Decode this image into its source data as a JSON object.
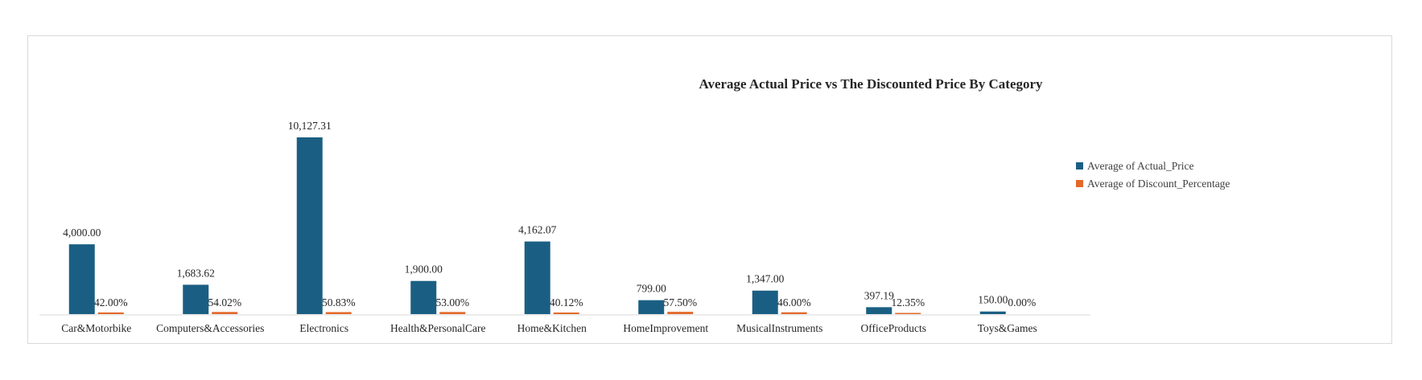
{
  "chart_data": {
    "type": "bar",
    "title": "Average Actual Price vs The Discounted Price By Category",
    "xlabel": "",
    "ylabel": "",
    "categories": [
      "Car&Motorbike",
      "Computers&Accessories",
      "Electronics",
      "Health&PersonalCare",
      "Home&Kitchen",
      "HomeImprovement",
      "MusicalInstruments",
      "OfficeProducts",
      "Toys&Games"
    ],
    "series": [
      {
        "name": "Average of Actual_Price",
        "color": "#1a5f83",
        "values": [
          4000.0,
          1683.62,
          10127.31,
          1900.0,
          4162.07,
          799.0,
          1347.0,
          397.19,
          150.0
        ],
        "labels": [
          "4,000.00",
          "1,683.62",
          "10,127.31",
          "1,900.00",
          "4,162.07",
          "799.00",
          "1,347.00",
          "397.19",
          "150.00"
        ]
      },
      {
        "name": "Average of Discount_Percentage",
        "color": "#e2692b",
        "values": [
          0.42,
          0.5402,
          0.5083,
          0.53,
          0.4012,
          0.575,
          0.46,
          0.1235,
          0.0
        ],
        "labels": [
          "42.00%",
          "54.02%",
          "50.83%",
          "53.00%",
          "40.12%",
          "57.50%",
          "46.00%",
          "12.35%",
          "0.00%"
        ]
      }
    ],
    "ylim": [
      0,
      10127.31
    ],
    "grid": false,
    "legend_position": "right"
  }
}
